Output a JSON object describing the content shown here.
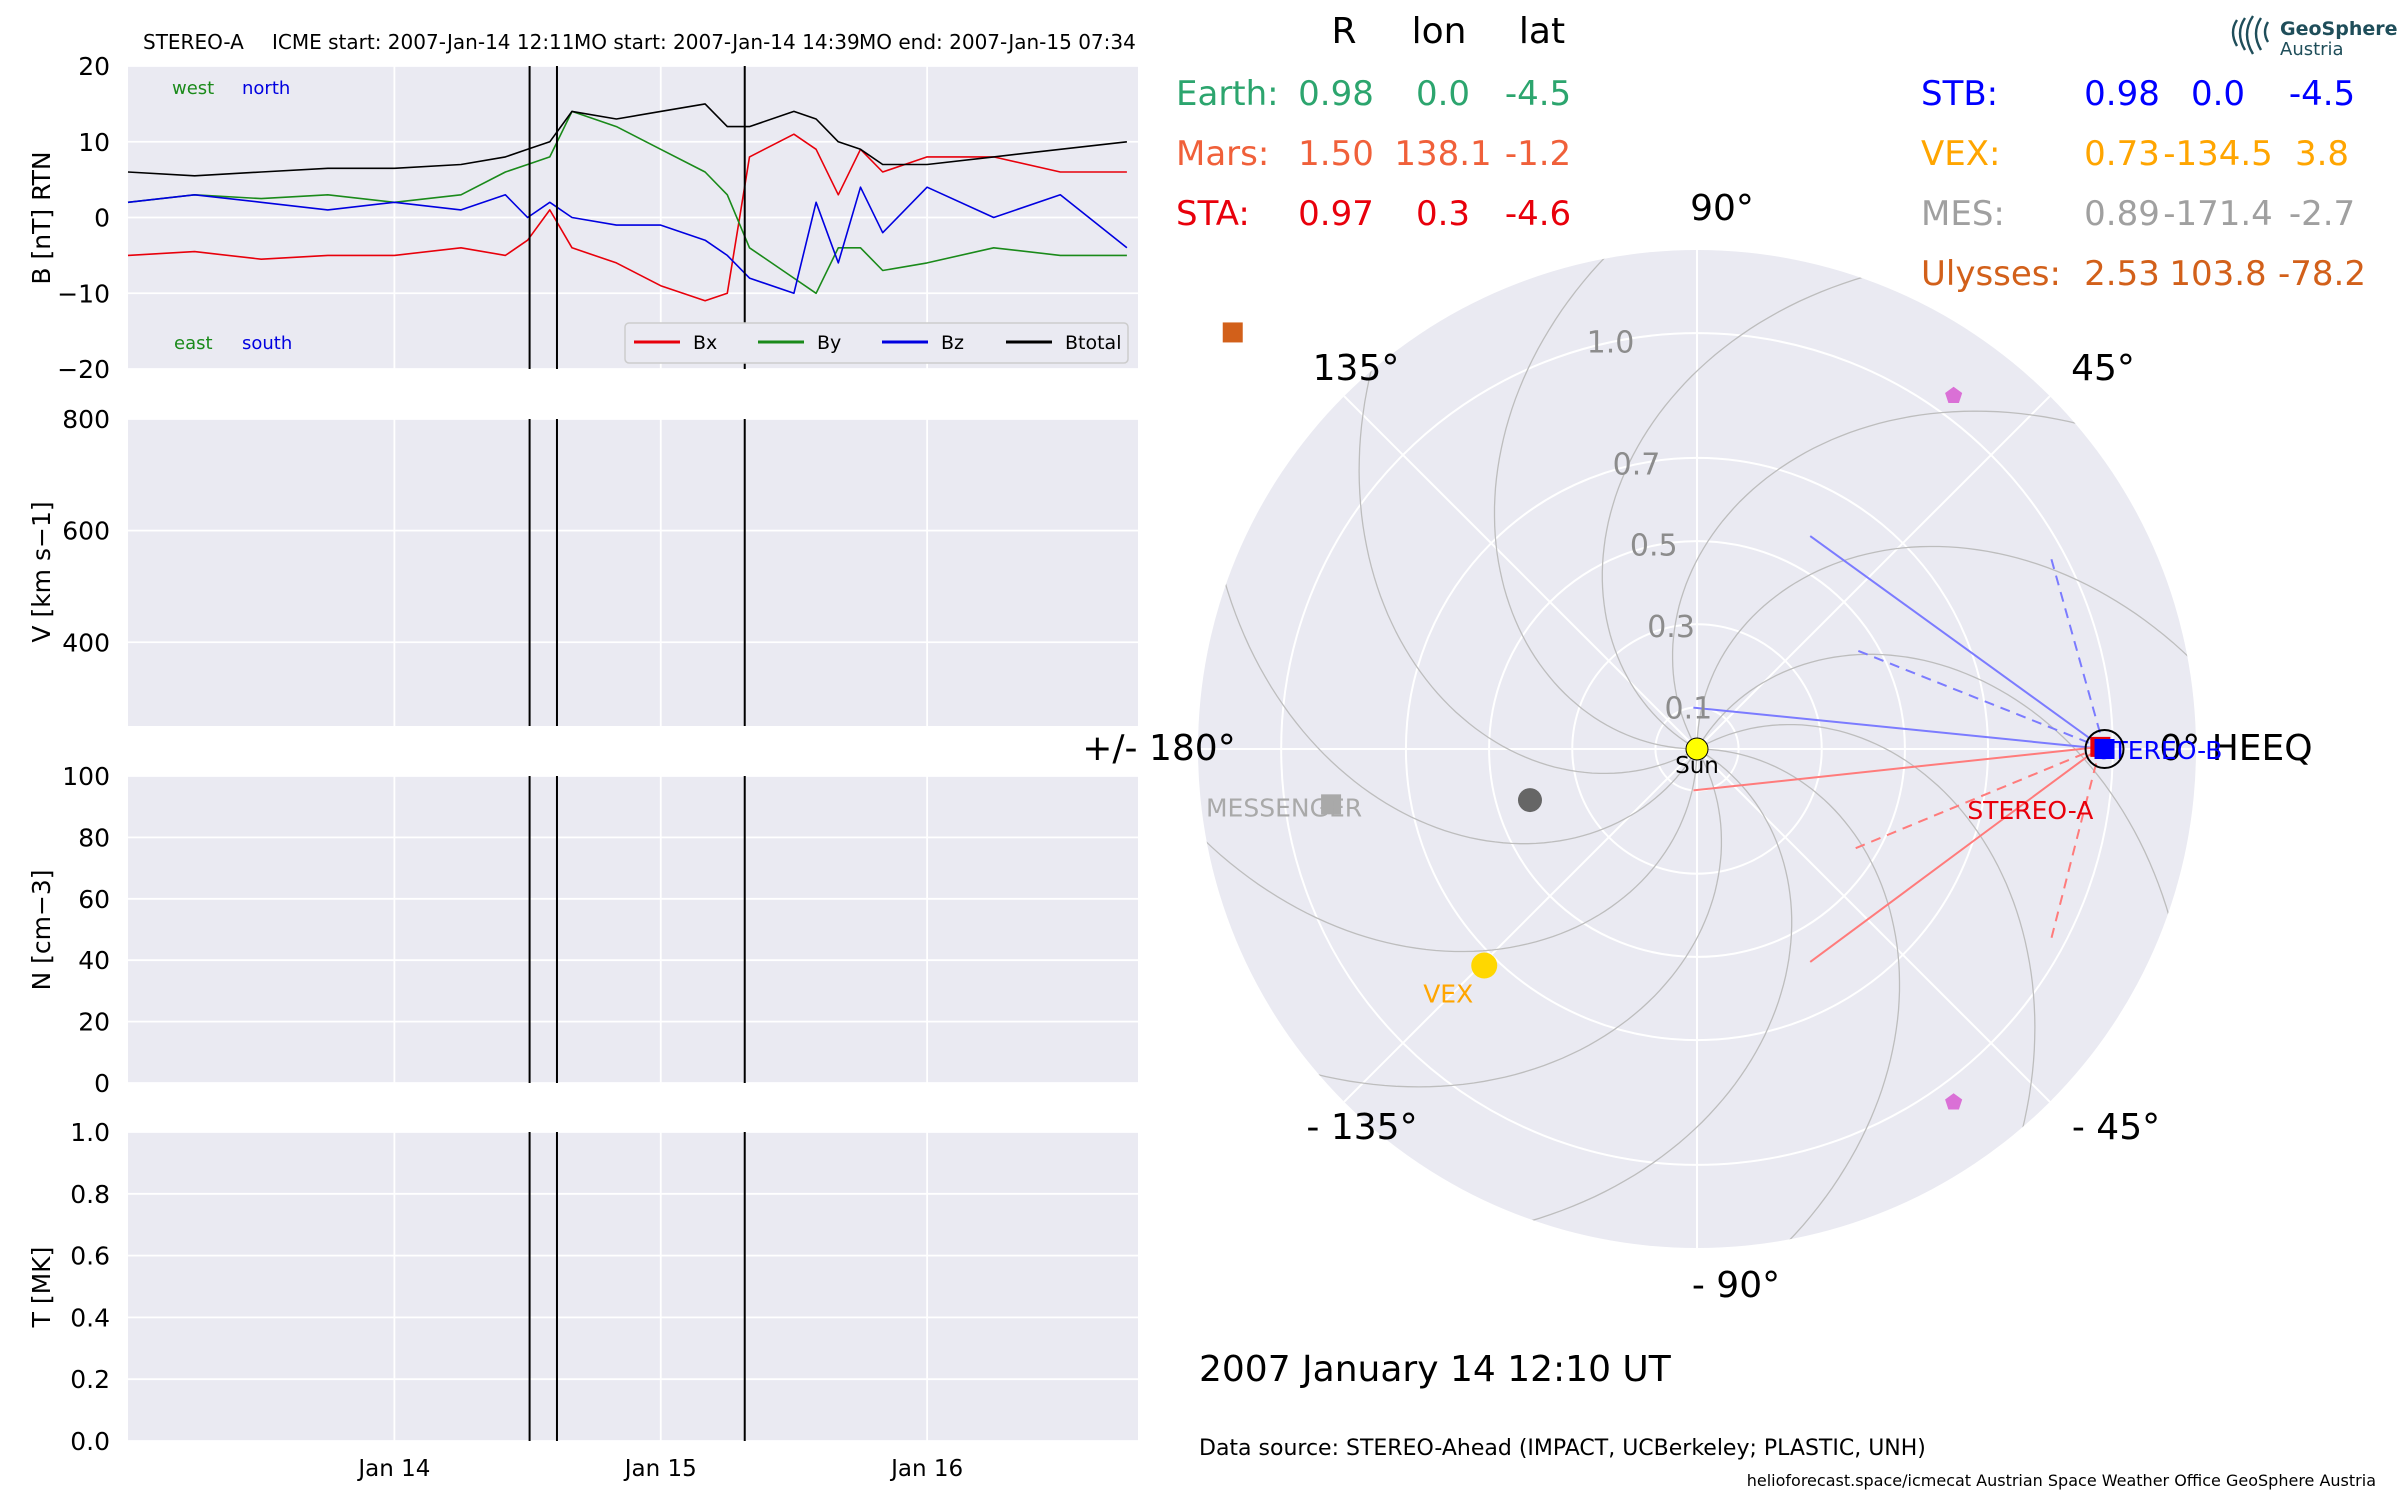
{
  "chart_data": [
    {
      "panel": "magnetic_field",
      "type": "line",
      "title": "STEREO-A",
      "event_header": [
        "STEREO-A",
        "ICME start: 2007-Jan-14 12:11",
        "MO start: 2007-Jan-14 14:39",
        "MO end: 2007-Jan-15 07:34"
      ],
      "ylabel": "B [nT] RTN",
      "ylim": [
        -20,
        20
      ],
      "yticks": [
        "20",
        "10",
        "0",
        "−10",
        "−20"
      ],
      "xticks": [
        "Jan 14",
        "Jan 15",
        "Jan 16"
      ],
      "xlim": [
        "2007-01-13 00:00",
        "2007-01-16 19:00"
      ],
      "annotations": {
        "west": "west",
        "north": "north",
        "east": "east",
        "south": "south"
      },
      "legend": {
        "placement": "lower right",
        "entries": [
          "Bx",
          "By",
          "Bz",
          "Btotal"
        ]
      },
      "event_lines": [
        "2007-01-14 12:11",
        "2007-01-14 14:39",
        "2007-01-15 07:34"
      ],
      "x_hours": [
        0,
        6,
        12,
        18,
        24,
        30,
        34,
        36,
        38,
        40,
        44,
        48,
        52,
        54,
        56,
        60,
        62,
        64,
        66,
        68,
        72,
        78,
        84,
        90
      ],
      "series": [
        {
          "name": "Bx",
          "color": "#e8000b",
          "values": [
            -5,
            -4.5,
            -5.5,
            -5,
            -5,
            -4,
            -5,
            -3,
            1,
            -4,
            -6,
            -9,
            -11,
            -10,
            8,
            11,
            9,
            3,
            9,
            6,
            8,
            8,
            6,
            6
          ]
        },
        {
          "name": "By",
          "color": "#1a8a1a",
          "values": [
            2,
            3,
            2.5,
            3,
            2,
            3,
            6,
            7,
            8,
            14,
            12,
            9,
            6,
            3,
            -4,
            -8,
            -10,
            -4,
            -4,
            -7,
            -6,
            -4,
            -5,
            -5
          ]
        },
        {
          "name": "Bz",
          "color": "#0000e0",
          "values": [
            2,
            3,
            2,
            1,
            2,
            1,
            3,
            0,
            2,
            0,
            -1,
            -1,
            -3,
            -5,
            -8,
            -10,
            2,
            -6,
            4,
            -2,
            4,
            0,
            3,
            -4
          ]
        },
        {
          "name": "Btotal",
          "color": "#000000",
          "values": [
            6,
            5.5,
            6,
            6.5,
            6.5,
            7,
            8,
            9,
            10,
            14,
            13,
            14,
            15,
            12,
            12,
            14,
            13,
            10,
            9,
            7,
            7,
            8,
            9,
            10
          ]
        }
      ]
    },
    {
      "panel": "speed",
      "type": "line",
      "ylabel": "V [km s−1]",
      "ylim": [
        250,
        800
      ],
      "yticks": [
        "800",
        "600",
        "400"
      ],
      "series": []
    },
    {
      "panel": "density",
      "type": "line",
      "ylabel": "N [cm−3]",
      "ylim": [
        0,
        100
      ],
      "yticks": [
        "100",
        "80",
        "60",
        "40",
        "20",
        "0"
      ],
      "series": []
    },
    {
      "panel": "temperature",
      "type": "line",
      "ylabel": "T [MK]",
      "ylim": [
        0,
        1
      ],
      "yticks": [
        "1.0",
        "0.8",
        "0.6",
        "0.4",
        "0.2",
        "0.0"
      ],
      "xticks": [
        "Jan 14",
        "Jan 15",
        "Jan 16"
      ],
      "series": []
    },
    {
      "panel": "positions",
      "type": "scatter",
      "coordinate_system": "0° HEEQ",
      "angle_labels": [
        "90°",
        "45°",
        "0° HEEQ",
        "- 45°",
        "- 90°",
        "- 135°",
        "+/- 180°",
        "135°"
      ],
      "radial_labels": [
        "1.0",
        "0.7",
        "0.5",
        "0.3",
        "0.1"
      ],
      "radial_ticks": [
        1.0,
        0.7,
        0.5,
        0.3,
        0.1
      ],
      "rmax": 1.2,
      "bodies": [
        {
          "name": "Sun",
          "label": "Sun",
          "r": 0,
          "lon": 0,
          "color": "#ffff00",
          "marker": "circle"
        },
        {
          "name": "STEREO-A",
          "label": "STEREO-A",
          "r": 0.97,
          "lon": 0.3,
          "color": "#e8000b",
          "marker": "square"
        },
        {
          "name": "STEREO-B",
          "label": "STEREO-B",
          "r": 0.98,
          "lon": 0.0,
          "color": "#0000ff",
          "marker": "square"
        },
        {
          "name": "Earth",
          "label": "",
          "r": 0.98,
          "lon": 0.0,
          "color": "#000000",
          "marker": "ring"
        },
        {
          "name": "Mars",
          "label": "",
          "r": 1.5,
          "lon": 138.1,
          "color": "#d2601a",
          "marker": "square"
        },
        {
          "name": "VEX",
          "label": "VEX",
          "r": 0.73,
          "lon": -134.5,
          "color": "#ffd700",
          "marker": "circle"
        },
        {
          "name": "MESSENGER",
          "label": "MESSENGER",
          "r": 0.89,
          "lon": -171.4,
          "color": "#a9a9a9",
          "marker": "square"
        },
        {
          "name": "Mercury",
          "label": "",
          "r": 0.42,
          "lon": -163,
          "color": "#666666",
          "marker": "circle"
        },
        {
          "name": "Ulysses-north",
          "label": "",
          "r": 1.05,
          "lon": 54,
          "color": "#da70d6",
          "marker": "pentagon"
        },
        {
          "name": "Ulysses-south",
          "label": "",
          "r": 1.05,
          "lon": -54,
          "color": "#da70d6",
          "marker": "pentagon"
        }
      ]
    }
  ],
  "positions_table": {
    "headers": [
      "R",
      "lon",
      "lat"
    ],
    "left": [
      {
        "name": "Earth:",
        "R": "0.98",
        "lon": "0.0",
        "lat": "-4.5",
        "color": "#2ca56e"
      },
      {
        "name": "Mars:",
        "R": "1.50",
        "lon": "138.1",
        "lat": "-1.2",
        "color": "#f0603a"
      },
      {
        "name": "STA:",
        "R": "0.97",
        "lon": "0.3",
        "lat": "-4.6",
        "color": "#e8000b"
      }
    ],
    "right": [
      {
        "name": "STB:",
        "R": "0.98",
        "lon": "0.0",
        "lat": "-4.5",
        "color": "#0000ff"
      },
      {
        "name": "VEX:",
        "R": "0.73",
        "lon": "-134.5",
        "lat": "3.8",
        "color": "#ffa500"
      },
      {
        "name": "MES:",
        "R": "0.89",
        "lon": "-171.4",
        "lat": "-2.7",
        "color": "#a0a0a0"
      },
      {
        "name": "Ulysses:",
        "R": "2.53",
        "lon": "103.8",
        "lat": "-78.2",
        "color": "#d2601a"
      }
    ]
  },
  "timestamp": "2007 January 14  12:10 UT",
  "data_source": "Data source: STEREO-Ahead (IMPACT, UCBerkeley; PLASTIC, UNH)",
  "footer": "helioforecast.space/icmecat   Austrian Space Weather Office   GeoSphere Austria",
  "logo": {
    "line1": "GeoSphere",
    "line2": "Austria"
  },
  "colors": {
    "panel_bg": "#eaeaf2",
    "grid": "#ffffff",
    "event_line": "#000000"
  }
}
